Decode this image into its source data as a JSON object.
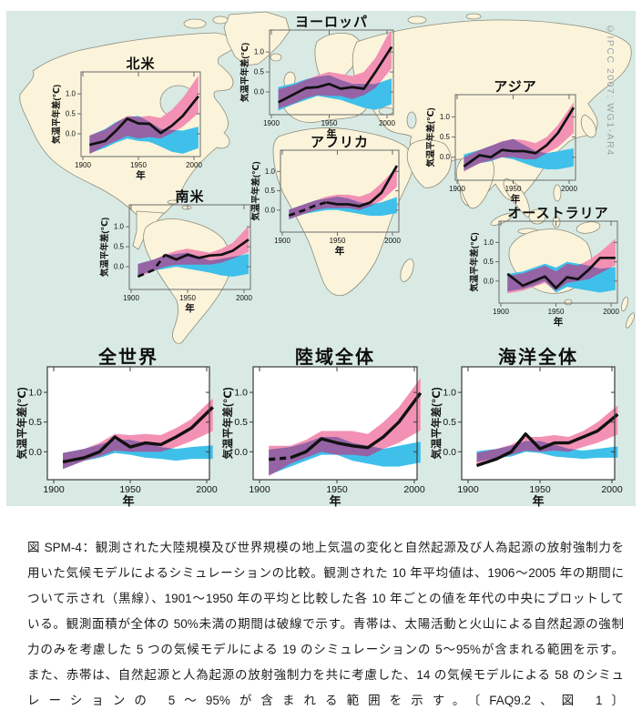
{
  "figure": {
    "copyright": "©IPCC 2007: WG1-AR4"
  },
  "colors": {
    "ocean": "#d9eae4",
    "land": "#fbf4db",
    "coastline": "#8c8c7d",
    "pink_band": "#f391b4",
    "blue_band": "#3fc0eb",
    "overlap_purple": "#9663a4",
    "observed_line": "#111111"
  },
  "caption": {
    "lines": [
      "図 SPM-4：観測された大陸規模及び世界規模の地上気温の変化と自然起源及び人為起源の放射強制力を",
      "用いた気候モデルによるシミュレーションの比較。観測された 10 年平均値は、1906～2005 年の期間に",
      "ついて示され（黒線）、1901～1950 年の平均と比較した各 10 年ごとの値を年代の中央にプロットして",
      "いる。観測面積が全体の 50%未満の期間は破線で示す。青帯は、太陽活動と火山による自然起源の強制",
      "力のみを考慮した 5 つの気候モデルによる 19 のシミュレーションの 5～95%が含まれる範囲を示す。",
      "また、赤帯は、自然起源と人為起源の放射強制力を共に考慮した、14 の気候モデルによる 58 のシミュ",
      "レーションの 5～95%が含まれる範囲を示す。〔FAQ9.2、図 1〕"
    ]
  },
  "chart_data": [
    {
      "id": "north-america",
      "type": "line+band",
      "title": "北米",
      "xlabel": "年",
      "ylabel": "気温平年差(℃)",
      "x_ticks": [
        1900,
        1950,
        2000
      ],
      "y_ticks": [
        1.0,
        0.5,
        0.0
      ],
      "years": [
        1910,
        1920,
        1930,
        1940,
        1950,
        1960,
        1970,
        1980,
        1990,
        2000
      ],
      "observed": [
        -0.25,
        -0.18,
        0.08,
        0.38,
        0.26,
        0.25,
        0.02,
        0.2,
        0.45,
        0.8
      ],
      "dashed_until": null,
      "pink_band_lo": [
        -0.45,
        -0.3,
        -0.18,
        -0.05,
        -0.12,
        -0.08,
        -0.12,
        0.02,
        0.18,
        0.42
      ],
      "pink_band_hi": [
        0.0,
        0.1,
        0.28,
        0.45,
        0.42,
        0.45,
        0.4,
        0.6,
        0.9,
        1.3
      ],
      "blue_band_lo": [
        -0.45,
        -0.35,
        -0.22,
        -0.12,
        -0.18,
        -0.2,
        -0.32,
        -0.45,
        -0.5,
        -0.4
      ],
      "blue_band_hi": [
        0.0,
        0.12,
        0.3,
        0.42,
        0.45,
        0.3,
        0.12,
        0.1,
        0.08,
        0.15
      ]
    },
    {
      "id": "europe",
      "type": "line+band",
      "title": "ヨーロッパ",
      "xlabel": "年",
      "ylabel": "気温平年差(℃)",
      "x_ticks": [
        1900,
        1950,
        2000
      ],
      "y_ticks": [
        1.0,
        0.5,
        0.0
      ],
      "years": [
        1910,
        1920,
        1930,
        1940,
        1950,
        1960,
        1970,
        1980,
        1990,
        2000
      ],
      "observed": [
        -0.2,
        -0.05,
        0.1,
        0.12,
        0.2,
        0.08,
        0.12,
        0.08,
        0.5,
        0.95
      ],
      "dashed_until": null,
      "pink_band_lo": [
        -0.38,
        -0.28,
        -0.15,
        -0.08,
        -0.1,
        -0.1,
        -0.18,
        -0.08,
        0.1,
        0.45
      ],
      "pink_band_hi": [
        0.1,
        0.18,
        0.3,
        0.42,
        0.5,
        0.45,
        0.4,
        0.5,
        0.85,
        1.4
      ],
      "blue_band_lo": [
        -0.42,
        -0.3,
        -0.2,
        -0.1,
        -0.15,
        -0.2,
        -0.3,
        -0.4,
        -0.45,
        -0.35
      ],
      "blue_band_hi": [
        0.15,
        0.22,
        0.32,
        0.38,
        0.42,
        0.3,
        0.2,
        0.2,
        0.2,
        0.3
      ]
    },
    {
      "id": "asia",
      "type": "line+band",
      "title": "アジア",
      "xlabel": "年",
      "ylabel": "気温平年差(℃)",
      "x_ticks": [
        1900,
        1950,
        2000
      ],
      "y_ticks": [
        1.0,
        0.5,
        0.0
      ],
      "years": [
        1910,
        1920,
        1930,
        1940,
        1950,
        1960,
        1970,
        1980,
        1990,
        2000
      ],
      "observed": [
        -0.15,
        0.05,
        0.0,
        0.18,
        0.15,
        0.15,
        0.1,
        0.3,
        0.6,
        1.05
      ],
      "dashed_until": null,
      "pink_band_lo": [
        -0.3,
        -0.15,
        -0.08,
        0.0,
        0.0,
        -0.05,
        -0.05,
        0.1,
        0.25,
        0.5
      ],
      "pink_band_hi": [
        0.05,
        0.18,
        0.28,
        0.4,
        0.45,
        0.42,
        0.35,
        0.5,
        0.8,
        1.2
      ],
      "blue_band_lo": [
        -0.28,
        -0.15,
        -0.1,
        0.0,
        -0.05,
        -0.15,
        -0.25,
        -0.3,
        -0.3,
        -0.25
      ],
      "blue_band_hi": [
        0.1,
        0.18,
        0.28,
        0.38,
        0.45,
        0.3,
        0.15,
        0.1,
        0.15,
        0.2
      ]
    },
    {
      "id": "south-america",
      "type": "line+band",
      "title": "南米",
      "xlabel": "年",
      "ylabel": "気温平年差(℃)",
      "x_ticks": [
        1900,
        1950,
        2000
      ],
      "y_ticks": [
        1.0,
        0.5,
        0.0
      ],
      "years": [
        1910,
        1920,
        1930,
        1940,
        1950,
        1960,
        1970,
        1980,
        1990,
        2000
      ],
      "observed": [
        -0.2,
        -0.08,
        0.3,
        0.18,
        0.3,
        0.22,
        0.28,
        0.3,
        0.4,
        0.6
      ],
      "dashed_until": 1930,
      "pink_band_lo": [
        -0.22,
        -0.1,
        0.0,
        0.05,
        0.05,
        0.05,
        0.05,
        0.1,
        0.2,
        0.32
      ],
      "pink_band_hi": [
        0.1,
        0.18,
        0.3,
        0.4,
        0.45,
        0.4,
        0.35,
        0.45,
        0.6,
        0.9
      ],
      "blue_band_lo": [
        -0.18,
        -0.1,
        -0.05,
        0.0,
        -0.05,
        -0.1,
        -0.15,
        -0.22,
        -0.25,
        -0.2
      ],
      "blue_band_hi": [
        0.1,
        0.18,
        0.28,
        0.32,
        0.35,
        0.25,
        0.15,
        0.2,
        0.25,
        0.3
      ]
    },
    {
      "id": "africa",
      "type": "line+band",
      "title": "アフリカ",
      "xlabel": "年",
      "ylabel": "気温平年差(℃)",
      "x_ticks": [
        1900,
        1950,
        2000
      ],
      "y_ticks": [
        1.0,
        0.5,
        0.0
      ],
      "years": [
        1910,
        1920,
        1930,
        1940,
        1950,
        1960,
        1970,
        1980,
        1990,
        2000
      ],
      "observed": [
        -0.1,
        0.0,
        0.12,
        0.2,
        0.15,
        0.15,
        0.1,
        0.2,
        0.45,
        0.95
      ],
      "dashed_until": 1945,
      "pink_band_lo": [
        -0.2,
        -0.1,
        0.0,
        0.05,
        0.05,
        0.05,
        0.0,
        0.1,
        0.25,
        0.5
      ],
      "pink_band_hi": [
        0.05,
        0.15,
        0.25,
        0.35,
        0.4,
        0.4,
        0.35,
        0.45,
        0.7,
        1.0
      ],
      "blue_band_lo": [
        -0.2,
        -0.1,
        -0.05,
        0.0,
        0.0,
        -0.05,
        -0.1,
        -0.15,
        -0.15,
        -0.1
      ],
      "blue_band_hi": [
        0.05,
        0.15,
        0.25,
        0.3,
        0.35,
        0.3,
        0.2,
        0.15,
        0.2,
        0.3
      ]
    },
    {
      "id": "australia",
      "type": "line+band",
      "title": "オーストラリア",
      "xlabel": "年",
      "ylabel": "気温平年差(℃)",
      "x_ticks": [
        1900,
        1950,
        2000
      ],
      "y_ticks": [
        1.0,
        0.5,
        0.0
      ],
      "years": [
        1910,
        1920,
        1930,
        1940,
        1950,
        1960,
        1970,
        1980,
        1990,
        2000
      ],
      "observed": [
        0.1,
        -0.12,
        0.0,
        0.12,
        -0.18,
        0.1,
        0.05,
        0.3,
        0.6,
        0.6
      ],
      "dashed_until": null,
      "pink_band_lo": [
        -0.3,
        -0.25,
        -0.15,
        -0.05,
        -0.25,
        -0.05,
        0.0,
        0.05,
        0.2,
        0.35
      ],
      "pink_band_hi": [
        0.15,
        0.2,
        0.3,
        0.4,
        0.25,
        0.45,
        0.4,
        0.55,
        0.75,
        1.0
      ],
      "blue_band_lo": [
        -0.25,
        -0.2,
        -0.12,
        0.0,
        -0.3,
        -0.15,
        -0.2,
        -0.25,
        -0.3,
        -0.25
      ],
      "blue_band_hi": [
        0.2,
        0.25,
        0.35,
        0.45,
        0.35,
        0.5,
        0.45,
        0.4,
        0.32,
        0.35
      ]
    },
    {
      "id": "global",
      "type": "line+band",
      "title": "全世界",
      "xlabel": "年",
      "ylabel": "気温平年差(℃)",
      "x_ticks": [
        1900,
        1950,
        2000
      ],
      "y_ticks": [
        1.0,
        0.5,
        0.0
      ],
      "years": [
        1910,
        1920,
        1930,
        1940,
        1950,
        1960,
        1970,
        1980,
        1990,
        2000
      ],
      "observed": [
        -0.15,
        -0.1,
        0.0,
        0.25,
        0.08,
        0.15,
        0.12,
        0.25,
        0.4,
        0.65
      ],
      "dashed_until": null,
      "pink_band_lo": [
        -0.25,
        -0.15,
        -0.08,
        0.02,
        0.0,
        0.0,
        0.0,
        0.08,
        0.18,
        0.3
      ],
      "pink_band_hi": [
        0.0,
        0.05,
        0.15,
        0.3,
        0.28,
        0.3,
        0.28,
        0.4,
        0.55,
        0.8
      ],
      "blue_band_lo": [
        -0.25,
        -0.15,
        -0.1,
        -0.02,
        -0.05,
        -0.1,
        -0.12,
        -0.15,
        -0.12,
        -0.12
      ],
      "blue_band_hi": [
        0.0,
        0.05,
        0.12,
        0.2,
        0.2,
        0.15,
        0.08,
        0.05,
        0.08,
        0.1
      ]
    },
    {
      "id": "global-land",
      "type": "line+band",
      "title": "陸域全体",
      "xlabel": "年",
      "ylabel": "気温平年差(℃)",
      "x_ticks": [
        1900,
        1950,
        2000
      ],
      "y_ticks": [
        1.0,
        0.5,
        0.0
      ],
      "years": [
        1910,
        1920,
        1930,
        1940,
        1950,
        1960,
        1970,
        1980,
        1990,
        2000
      ],
      "observed": [
        -0.12,
        -0.1,
        0.0,
        0.22,
        0.15,
        0.1,
        0.07,
        0.25,
        0.5,
        0.85
      ],
      "dashed_until": 1925,
      "pink_band_lo": [
        -0.35,
        -0.2,
        -0.1,
        0.0,
        -0.05,
        -0.05,
        -0.08,
        0.05,
        0.15,
        0.3
      ],
      "pink_band_hi": [
        0.1,
        0.1,
        0.2,
        0.35,
        0.35,
        0.35,
        0.3,
        0.5,
        0.75,
        1.1
      ],
      "blue_band_lo": [
        -0.35,
        -0.25,
        -0.15,
        -0.05,
        -0.05,
        -0.15,
        -0.2,
        -0.25,
        -0.25,
        -0.2
      ],
      "blue_band_hi": [
        0.05,
        0.08,
        0.15,
        0.25,
        0.25,
        0.15,
        0.1,
        0.05,
        0.1,
        0.15
      ]
    },
    {
      "id": "global-ocean",
      "type": "line+band",
      "title": "海洋全体",
      "xlabel": "年",
      "ylabel": "気温平年差(℃)",
      "x_ticks": [
        1900,
        1950,
        2000
      ],
      "y_ticks": [
        1.0,
        0.5,
        0.0
      ],
      "years": [
        1910,
        1920,
        1930,
        1940,
        1950,
        1960,
        1970,
        1980,
        1990,
        2000
      ],
      "observed": [
        -0.2,
        -0.12,
        0.0,
        0.3,
        0.05,
        0.15,
        0.15,
        0.25,
        0.35,
        0.55
      ],
      "dashed_until": null,
      "pink_band_lo": [
        -0.2,
        -0.12,
        -0.05,
        0.02,
        0.0,
        0.02,
        0.0,
        0.08,
        0.15,
        0.25
      ],
      "pink_band_hi": [
        0.0,
        0.05,
        0.12,
        0.25,
        0.25,
        0.28,
        0.25,
        0.35,
        0.5,
        0.7
      ],
      "blue_band_lo": [
        -0.15,
        -0.1,
        -0.08,
        0.0,
        -0.02,
        -0.08,
        -0.1,
        -0.12,
        -0.1,
        -0.1
      ],
      "blue_band_hi": [
        0.02,
        0.05,
        0.1,
        0.18,
        0.18,
        0.12,
        0.05,
        0.02,
        0.05,
        0.08
      ]
    }
  ]
}
